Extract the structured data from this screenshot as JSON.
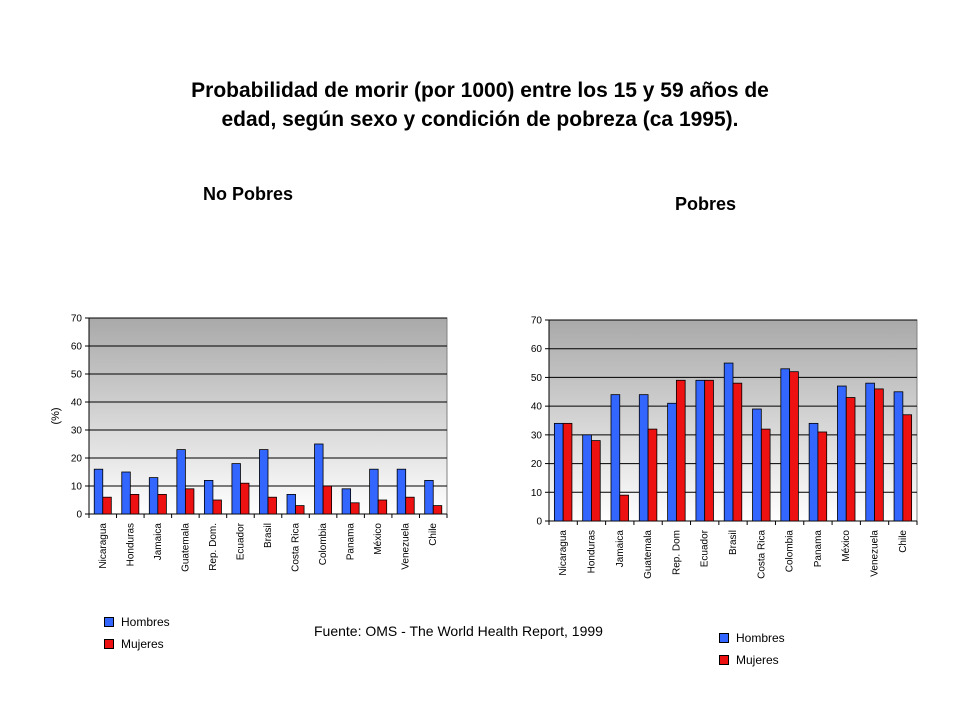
{
  "title_line1": "Probabilidad de morir  (por 1000) entre los 15 y 59 años de",
  "title_line2": "edad, según sexo y condición de pobreza (ca 1995).",
  "source": "Fuente: OMS - The World Health Report, 1999",
  "colors": {
    "hombres": "#3366ff",
    "mujeres": "#ee1111",
    "plot_top": "#a9a9a9",
    "plot_bottom": "#ffffff"
  },
  "chart_data": [
    {
      "type": "bar",
      "title": "No Pobres",
      "ylabel": "(%)",
      "xlabel": "",
      "ylim": [
        0,
        70
      ],
      "yticks": [
        0,
        10,
        20,
        30,
        40,
        50,
        60,
        70
      ],
      "grid": true,
      "legend_position": "bottom-left",
      "categories": [
        "Nicaragua",
        "Honduras",
        "Jamaica",
        "Guatemala",
        "Rep. Dom.",
        "Ecuador",
        "Brasil",
        "Costa Rica",
        "Colombia",
        "Panama",
        "México",
        "Venezuela",
        "Chile"
      ],
      "series": [
        {
          "name": "Hombres",
          "values": [
            16,
            15,
            13,
            23,
            12,
            18,
            23,
            7,
            25,
            9,
            16,
            16,
            12
          ]
        },
        {
          "name": "Mujeres",
          "values": [
            6,
            7,
            7,
            9,
            5,
            11,
            6,
            3,
            10,
            4,
            5,
            6,
            3
          ]
        }
      ]
    },
    {
      "type": "bar",
      "title": "Pobres",
      "ylabel": "",
      "xlabel": "",
      "ylim": [
        0,
        70
      ],
      "yticks": [
        0,
        10,
        20,
        30,
        40,
        50,
        60,
        70
      ],
      "grid": true,
      "legend_position": "bottom-right",
      "categories": [
        "Nicaragua",
        "Honduras",
        "Jamaica",
        "Guatemala",
        "Rep. Dom",
        "Ecuador",
        "Brasil",
        "Costa Rica",
        "Colombia",
        "Panama",
        "México",
        "Venezuela",
        "Chile"
      ],
      "series": [
        {
          "name": "Hombres",
          "values": [
            34,
            30,
            44,
            44,
            41,
            49,
            55,
            39,
            53,
            34,
            47,
            48,
            45
          ]
        },
        {
          "name": "Mujeres",
          "values": [
            34,
            28,
            9,
            32,
            49,
            49,
            48,
            32,
            52,
            31,
            43,
            46,
            37
          ]
        }
      ]
    }
  ]
}
